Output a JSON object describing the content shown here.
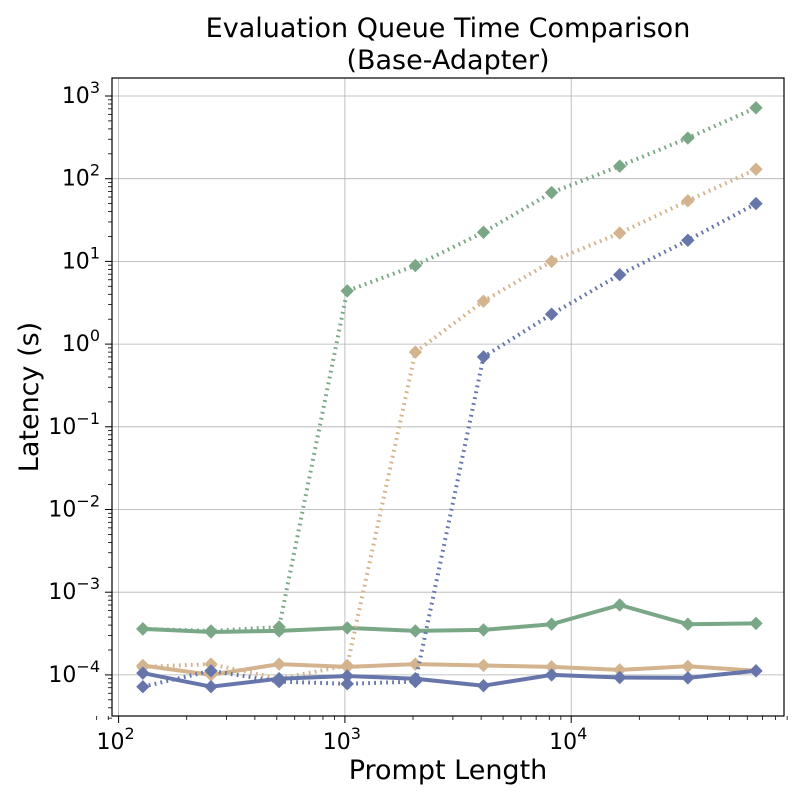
{
  "chart_data": {
    "type": "line",
    "title": [
      "Evaluation Queue Time Comparison",
      "(Base-Adapter)"
    ],
    "xlabel": "Prompt Length",
    "ylabel": "Latency (s)",
    "xscale": "log",
    "yscale": "log",
    "xlim": [
      80,
      90000
    ],
    "ylim": [
      3e-05,
      1600
    ],
    "grid": true,
    "legend": "none",
    "x": [
      128,
      256,
      512,
      1024,
      2048,
      4096,
      8192,
      16384,
      32768,
      65536
    ],
    "x_ticks": [
      {
        "value": 100,
        "base": "10",
        "exp": "2"
      },
      {
        "value": 1000,
        "base": "10",
        "exp": "3"
      },
      {
        "value": 10000,
        "base": "10",
        "exp": "4"
      }
    ],
    "y_ticks": [
      {
        "value": 0.0001,
        "base": "10",
        "exp": "−4"
      },
      {
        "value": 0.001,
        "base": "10",
        "exp": "−3"
      },
      {
        "value": 0.01,
        "base": "10",
        "exp": "−2"
      },
      {
        "value": 0.1,
        "base": "10",
        "exp": "−1"
      },
      {
        "value": 1,
        "base": "10",
        "exp": "0"
      },
      {
        "value": 10,
        "base": "10",
        "exp": "1"
      },
      {
        "value": 100,
        "base": "10",
        "exp": "2"
      },
      {
        "value": 1000,
        "base": "10",
        "exp": "3"
      }
    ],
    "series": [
      {
        "color": "#7aa886",
        "style": "solid",
        "values": [
          0.00036,
          0.00033,
          0.00034,
          0.00037,
          0.00034,
          0.00035,
          0.00041,
          0.0007,
          0.00041,
          0.00042
        ]
      },
      {
        "color": "#7aa886",
        "style": "dotted",
        "values": [
          0.00036,
          0.00034,
          0.00038,
          4.4,
          8.9,
          22.5,
          68,
          142,
          310,
          720
        ]
      },
      {
        "color": "#d4b48e",
        "style": "solid",
        "values": [
          0.00013,
          0.0001,
          0.000135,
          0.000125,
          0.000135,
          0.00013,
          0.000125,
          0.000115,
          0.000127,
          0.000112
        ]
      },
      {
        "color": "#d4b48e",
        "style": "dotted",
        "values": [
          0.000125,
          0.000135,
          9e-05,
          0.00013,
          0.8,
          3.3,
          10,
          22,
          54,
          130
        ]
      },
      {
        "color": "#6676aa",
        "style": "solid",
        "values": [
          0.000105,
          7.2e-05,
          9e-05,
          9.7e-05,
          9e-05,
          7.4e-05,
          0.0001,
          9.3e-05,
          9.2e-05,
          0.000112
        ]
      },
      {
        "color": "#6676aa",
        "style": "dotted",
        "values": [
          7.2e-05,
          0.000112,
          8.3e-05,
          7.8e-05,
          8.3e-05,
          0.7,
          2.3,
          6.9,
          18,
          50
        ]
      }
    ]
  }
}
